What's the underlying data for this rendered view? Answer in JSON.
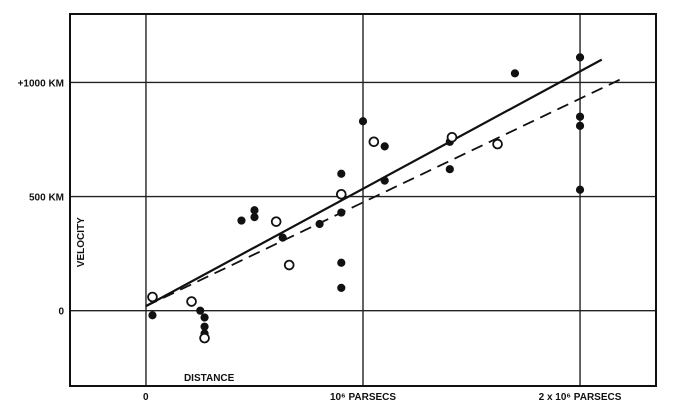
{
  "chart_data": {
    "type": "scatter",
    "xlabel": "DISTANCE",
    "ylabel": "VELOCITY",
    "x_unit": "PARSECS",
    "y_unit": "KM",
    "xlim": [
      -0.35,
      2.35
    ],
    "ylim": [
      -330,
      1300
    ],
    "grid": true,
    "x_ticks": [
      {
        "value": 0,
        "label": "0"
      },
      {
        "value": 1,
        "label": "10⁶ PARSECS"
      },
      {
        "value": 2,
        "label": "2 x 10⁶ PARSECS"
      }
    ],
    "y_ticks": [
      {
        "value": 0,
        "label": "0"
      },
      {
        "value": 500,
        "label": "500 KM"
      },
      {
        "value": 1000,
        "label": "+1000 KM"
      }
    ],
    "series": [
      {
        "marker": "filled-circle",
        "points": [
          [
            0.03,
            -20
          ],
          [
            0.25,
            0
          ],
          [
            0.27,
            -30
          ],
          [
            0.27,
            -70
          ],
          [
            0.27,
            -100
          ],
          [
            0.44,
            395
          ],
          [
            0.5,
            410
          ],
          [
            0.5,
            440
          ],
          [
            0.63,
            320
          ],
          [
            0.8,
            380
          ],
          [
            0.9,
            600
          ],
          [
            0.9,
            430
          ],
          [
            0.9,
            210
          ],
          [
            0.9,
            100
          ],
          [
            1.0,
            830
          ],
          [
            1.1,
            570
          ],
          [
            1.1,
            720
          ],
          [
            1.4,
            620
          ],
          [
            1.4,
            740
          ],
          [
            1.7,
            1040
          ],
          [
            2.0,
            1110
          ],
          [
            2.0,
            850
          ],
          [
            2.0,
            810
          ],
          [
            2.0,
            530
          ]
        ]
      },
      {
        "marker": "open-circle",
        "points": [
          [
            0.03,
            60
          ],
          [
            0.21,
            40
          ],
          [
            0.27,
            -120
          ],
          [
            0.6,
            390
          ],
          [
            0.66,
            200
          ],
          [
            0.9,
            510
          ],
          [
            1.05,
            740
          ],
          [
            1.41,
            760
          ],
          [
            1.62,
            730
          ]
        ]
      }
    ],
    "fits": [
      {
        "style": "solid",
        "x": [
          0,
          2.1
        ],
        "y": [
          20,
          1100
        ]
      },
      {
        "style": "dashed",
        "x": [
          0,
          2.2
        ],
        "y": [
          20,
          1020
        ]
      }
    ]
  }
}
